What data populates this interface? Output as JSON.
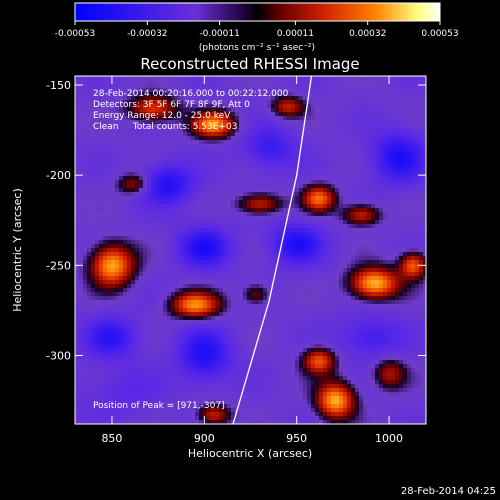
{
  "chart_data": {
    "type": "heatmap",
    "title": "Reconstructed RHESSI Image",
    "xlabel": "Heliocentric X (arcsec)",
    "ylabel": "Heliocentric Y (arcsec)",
    "xlim": [
      830,
      1020
    ],
    "ylim": [
      -338,
      -145
    ],
    "xticks": [
      850,
      900,
      950,
      1000
    ],
    "xtick_labels": [
      "850",
      "900",
      "950",
      "1000"
    ],
    "yticks": [
      -150,
      -200,
      -250,
      -300
    ],
    "ytick_labels": [
      "-150",
      "-200",
      "-250",
      "-300"
    ],
    "colorbar": {
      "min": -0.00053,
      "max": 0.00053,
      "ticks": [
        -0.00053,
        -0.00032,
        -0.00011,
        0.00011,
        0.00032,
        0.00053
      ],
      "tick_labels": [
        "-0.00053",
        "-0.00032",
        "-0.00011",
        "0.00011",
        "0.00032",
        "0.00053"
      ],
      "unit_label": "(photons cm⁻² s⁻¹ asec⁻²)",
      "colormap": [
        "#0000ff",
        "#6a2fd8",
        "#000000",
        "#b00000",
        "#ff6000",
        "#ffff80",
        "#ffffff"
      ]
    },
    "annotations": [
      "28-Feb-2014 00:20:16.000 to 00:22:12.000",
      "Detectors: 3F 5F 6F 7F 8F 9F, Att 0",
      "Energy Range: 12.0 - 25.0 keV",
      "Clean     Total counts: 5.53E+03"
    ],
    "peak_label": "Position of Peak = [971,-307]",
    "peak": {
      "x": 971,
      "y": -307
    },
    "limb_curve": [
      [
        915,
        -340
      ],
      [
        935,
        -270
      ],
      [
        950,
        -200
      ],
      [
        958,
        -145
      ]
    ],
    "sources": [
      {
        "x": 872,
        "y": -163,
        "amp": 0.00035,
        "sx": 9,
        "sy": 5
      },
      {
        "x": 905,
        "y": -172,
        "amp": 0.00045,
        "sx": 8,
        "sy": 5
      },
      {
        "x": 945,
        "y": -162,
        "amp": 0.00028,
        "sx": 6,
        "sy": 4
      },
      {
        "x": 862,
        "y": -205,
        "amp": 0.00025,
        "sx": 6,
        "sy": 4
      },
      {
        "x": 850,
        "y": -250,
        "amp": 0.0005,
        "sx": 8,
        "sy": 8
      },
      {
        "x": 930,
        "y": -216,
        "amp": 0.0003,
        "sx": 8,
        "sy": 4
      },
      {
        "x": 962,
        "y": -213,
        "amp": 0.0004,
        "sx": 6,
        "sy": 5
      },
      {
        "x": 985,
        "y": -222,
        "amp": 0.0003,
        "sx": 7,
        "sy": 4
      },
      {
        "x": 895,
        "y": -272,
        "amp": 0.00045,
        "sx": 9,
        "sy": 5
      },
      {
        "x": 928,
        "y": -266,
        "amp": 0.0002,
        "sx": 5,
        "sy": 4
      },
      {
        "x": 992,
        "y": -260,
        "amp": 0.00052,
        "sx": 9,
        "sy": 6
      },
      {
        "x": 1013,
        "y": -250,
        "amp": 0.0004,
        "sx": 5,
        "sy": 5
      },
      {
        "x": 962,
        "y": -303,
        "amp": 0.00038,
        "sx": 6,
        "sy": 5
      },
      {
        "x": 971,
        "y": -325,
        "amp": 0.0005,
        "sx": 7,
        "sy": 7
      },
      {
        "x": 1000,
        "y": -310,
        "amp": 0.00025,
        "sx": 6,
        "sy": 6
      },
      {
        "x": 905,
        "y": -333,
        "amp": 0.0003,
        "sx": 6,
        "sy": 4
      },
      {
        "x": 855,
        "y": -320,
        "amp": -0.0001,
        "sx": 15,
        "sy": 10
      },
      {
        "x": 900,
        "y": -240,
        "amp": -0.0003,
        "sx": 10,
        "sy": 8
      },
      {
        "x": 880,
        "y": -205,
        "amp": -0.0003,
        "sx": 10,
        "sy": 8
      },
      {
        "x": 900,
        "y": -300,
        "amp": -0.0003,
        "sx": 10,
        "sy": 10
      },
      {
        "x": 950,
        "y": -238,
        "amp": -0.0003,
        "sx": 10,
        "sy": 8
      },
      {
        "x": 1005,
        "y": -190,
        "amp": -0.0003,
        "sx": 10,
        "sy": 10
      },
      {
        "x": 850,
        "y": -290,
        "amp": -0.00025,
        "sx": 10,
        "sy": 8
      },
      {
        "x": 990,
        "y": -290,
        "amp": -0.0002,
        "sx": 12,
        "sy": 8
      },
      {
        "x": 935,
        "y": -185,
        "amp": -0.00022,
        "sx": 10,
        "sy": 8
      }
    ]
  },
  "footer": {
    "timestamp": "28-Feb-2014 04:25"
  }
}
